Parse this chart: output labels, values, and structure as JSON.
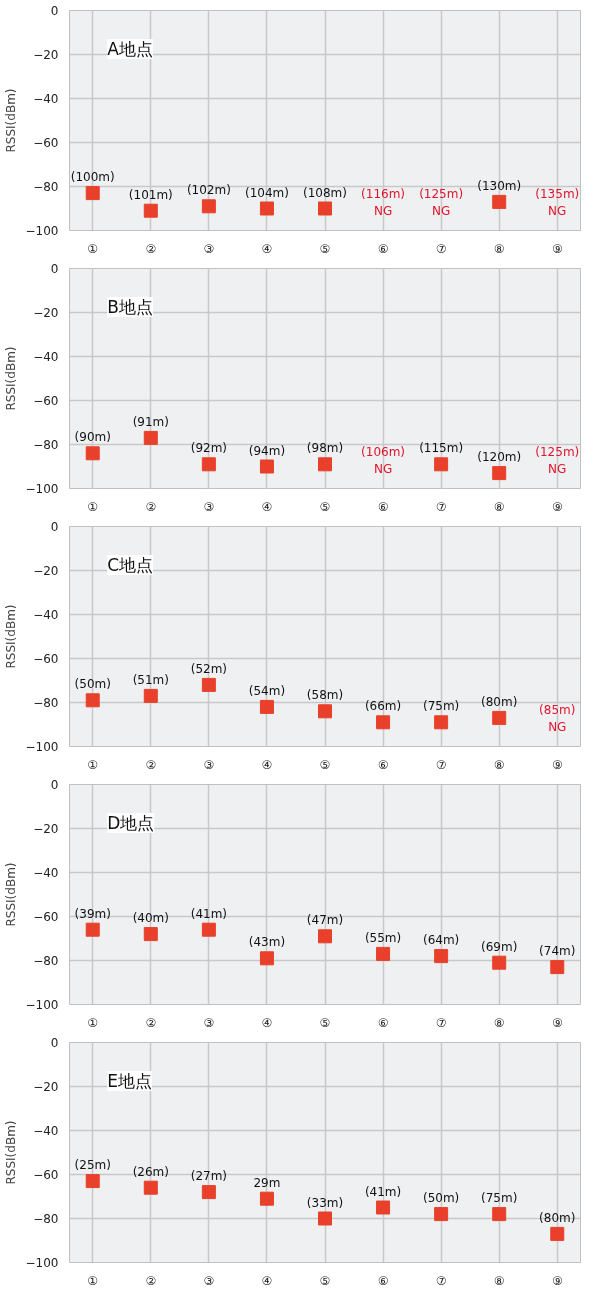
{
  "chart_data": [
    {
      "type": "scatter",
      "title": "A地点",
      "ylabel": "RSSI(dBm)",
      "categories": [
        "①",
        "②",
        "③",
        "④",
        "⑤",
        "⑥",
        "⑦",
        "⑧",
        "⑨"
      ],
      "series": [
        {
          "color": "#e8402a",
          "values": [
            -83,
            -91,
            -89,
            -90,
            -90,
            null,
            null,
            -87,
            null
          ]
        }
      ],
      "ylim": [
        -100,
        0
      ],
      "yticks": [
        -100,
        -80,
        -60,
        -40,
        -20,
        0
      ],
      "grid": true,
      "marker": "square",
      "annotations": [
        {
          "text": "(100m)",
          "x": "①",
          "y": -83
        },
        {
          "text": "(101m)",
          "x": "②",
          "y": -91
        },
        {
          "text": "(102m)",
          "x": "③",
          "y": -89
        },
        {
          "text": "(104m)",
          "x": "④",
          "y": -90
        },
        {
          "text": "(108m)",
          "x": "⑤",
          "y": -90
        },
        "(116m)\nNG",
        "(125m)\nNG",
        {
          "text": "(130m)",
          "x": "⑧",
          "y": -87
        },
        "(135m)\nNG"
      ]
    },
    {
      "type": "scatter",
      "title": "B地点",
      "ylabel": "RSSI(dBm)",
      "categories": [
        "①",
        "②",
        "③",
        "④",
        "⑤",
        "⑥",
        "⑦",
        "⑧",
        "⑨"
      ],
      "series": [
        {
          "color": "#e8402a",
          "values": [
            -84,
            -77,
            -89,
            -90,
            -89,
            null,
            -89,
            -93,
            null
          ]
        }
      ],
      "ylim": [
        -100,
        0
      ],
      "yticks": [
        -100,
        -80,
        -60,
        -40,
        -20,
        0
      ],
      "grid": true,
      "marker": "square",
      "annotations": [
        {
          "text": "(90m)",
          "x": "①",
          "y": -84
        },
        {
          "text": "(91m)",
          "x": "②",
          "y": -77
        },
        {
          "text": "(92m)",
          "x": "③",
          "y": -89
        },
        {
          "text": "(94m)",
          "x": "④",
          "y": -90
        },
        {
          "text": "(98m)",
          "x": "⑤",
          "y": -89
        },
        "(106m)\nNG",
        {
          "text": "(115m)",
          "x": "⑦",
          "y": -89
        },
        {
          "text": "(120m)",
          "x": "⑧",
          "y": -93
        },
        "(125m)\nNG"
      ]
    },
    {
      "type": "scatter",
      "title": "C地点",
      "ylabel": "RSSI(dBm)",
      "categories": [
        "①",
        "②",
        "③",
        "④",
        "⑤",
        "⑥",
        "⑦",
        "⑧",
        "⑨"
      ],
      "series": [
        {
          "color": "#e8402a",
          "values": [
            -79,
            -77,
            -72,
            -82,
            -84,
            -89,
            -89,
            -87,
            null
          ]
        }
      ],
      "ylim": [
        -100,
        0
      ],
      "yticks": [
        -100,
        -80,
        -60,
        -40,
        -20,
        0
      ],
      "grid": true,
      "marker": "square",
      "annotations": [
        {
          "text": "(50m)",
          "x": "①",
          "y": -79
        },
        {
          "text": "(51m)",
          "x": "②",
          "y": -77
        },
        {
          "text": "(52m)",
          "x": "③",
          "y": -72
        },
        {
          "text": "(54m)",
          "x": "④",
          "y": -82
        },
        {
          "text": "(58m)",
          "x": "⑤",
          "y": -84
        },
        {
          "text": "(66m)",
          "x": "⑥",
          "y": -89
        },
        {
          "text": "(75m)",
          "x": "⑦",
          "y": -89
        },
        {
          "text": "(80m)",
          "x": "⑧",
          "y": -87
        },
        "(85m)\nNG"
      ]
    },
    {
      "type": "scatter",
      "title": "D地点",
      "ylabel": "RSSI(dBm)",
      "categories": [
        "①",
        "②",
        "③",
        "④",
        "⑤",
        "⑥",
        "⑦",
        "⑧",
        "⑨"
      ],
      "series": [
        {
          "color": "#e8402a",
          "values": [
            -66,
            -68,
            -66,
            -79,
            -69,
            -77,
            -78,
            -81,
            -83
          ]
        }
      ],
      "ylim": [
        -100,
        0
      ],
      "yticks": [
        -100,
        -80,
        -60,
        -40,
        -20,
        0
      ],
      "grid": true,
      "marker": "square",
      "annotations": [
        {
          "text": "(39m)",
          "x": "①",
          "y": -66
        },
        {
          "text": "(40m)",
          "x": "②",
          "y": -68
        },
        {
          "text": "(41m)",
          "x": "③",
          "y": -66
        },
        {
          "text": "(43m)",
          "x": "④",
          "y": -79
        },
        {
          "text": "(47m)",
          "x": "⑤",
          "y": -69
        },
        {
          "text": "(55m)",
          "x": "⑥",
          "y": -77
        },
        {
          "text": "(64m)",
          "x": "⑦",
          "y": -78
        },
        {
          "text": "(69m)",
          "x": "⑧",
          "y": -81
        },
        {
          "text": "(74m)",
          "x": "⑨",
          "y": -83
        }
      ]
    },
    {
      "type": "scatter",
      "title": "E地点",
      "ylabel": "RSSI(dBm)",
      "categories": [
        "①",
        "②",
        "③",
        "④",
        "⑤",
        "⑥",
        "⑦",
        "⑧",
        "⑨"
      ],
      "series": [
        {
          "color": "#e8402a",
          "values": [
            -63,
            -66,
            -68,
            -71,
            -80,
            -75,
            -78,
            -78,
            -87
          ]
        }
      ],
      "ylim": [
        -100,
        0
      ],
      "yticks": [
        -100,
        -80,
        -60,
        -40,
        -20,
        0
      ],
      "grid": true,
      "marker": "square",
      "annotations": [
        {
          "text": "(25m)",
          "x": "①",
          "y": -63
        },
        {
          "text": "(26m)",
          "x": "②",
          "y": -66
        },
        {
          "text": "(27m)",
          "x": "③",
          "y": -68
        },
        {
          "text": "29m",
          "x": "④",
          "y": -71
        },
        {
          "text": "(33m)",
          "x": "⑤",
          "y": -80
        },
        {
          "text": "(41m)",
          "x": "⑥",
          "y": -75
        },
        {
          "text": "(50m)",
          "x": "⑦",
          "y": -78
        },
        {
          "text": "(75m)",
          "x": "⑧",
          "y": -78
        },
        {
          "text": "(80m)",
          "x": "⑨",
          "y": -87
        }
      ]
    }
  ]
}
